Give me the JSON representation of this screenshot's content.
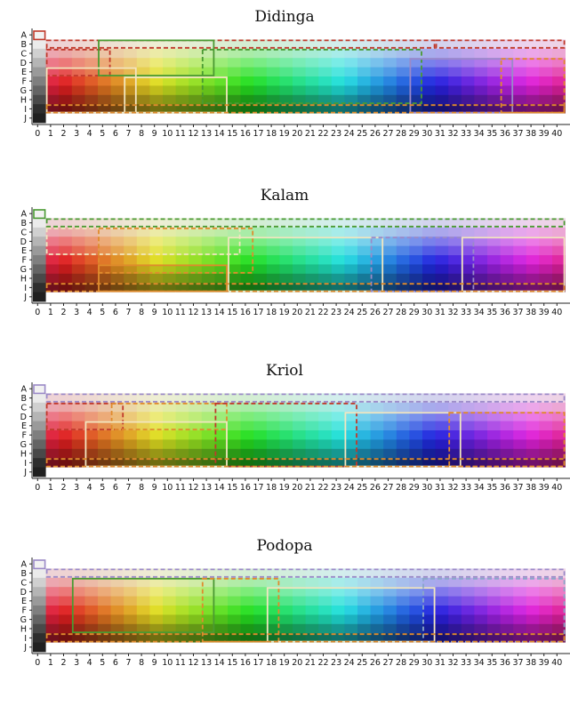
{
  "chart_data": [
    {
      "type": "heatmap",
      "title": "Didinga",
      "rows": [
        "A",
        "B",
        "C",
        "D",
        "E",
        "F",
        "G",
        "H",
        "I",
        "J"
      ],
      "columns": [
        "0",
        "1",
        "2",
        "3",
        "4",
        "5",
        "6",
        "7",
        "8",
        "9",
        "10",
        "11",
        "12",
        "13",
        "14",
        "15",
        "16",
        "17",
        "18",
        "19",
        "20",
        "21",
        "22",
        "23",
        "24",
        "25",
        "26",
        "27",
        "28",
        "29",
        "30",
        "31",
        "32",
        "33",
        "34",
        "35",
        "36",
        "37",
        "38",
        "39",
        "40"
      ],
      "description_of_cells": "Munsell-style color chip grid (hue varies by column, lightness by row); dashed and solid outlines mark color-term categories",
      "category_outline_colors": [
        "#c0392b",
        "#4a9a32",
        "#e08b2d",
        "#f2e6c0",
        "#9b8ac8",
        "#8aa8c8"
      ]
    },
    {
      "type": "heatmap",
      "title": "Kalam",
      "rows": [
        "A",
        "B",
        "C",
        "D",
        "E",
        "F",
        "G",
        "H",
        "I",
        "J"
      ],
      "columns": [
        "0",
        "1",
        "2",
        "3",
        "4",
        "5",
        "6",
        "7",
        "8",
        "9",
        "10",
        "11",
        "12",
        "13",
        "14",
        "15",
        "16",
        "17",
        "18",
        "19",
        "20",
        "21",
        "22",
        "23",
        "24",
        "25",
        "26",
        "27",
        "28",
        "29",
        "30",
        "31",
        "32",
        "33",
        "34",
        "35",
        "36",
        "37",
        "38",
        "39",
        "40"
      ],
      "description_of_cells": "Munsell-style color chip grid; outlines mark color-term categories",
      "category_outline_colors": [
        "#4a9a32",
        "#e08b2d",
        "#f2e6c0",
        "#9b8ac8"
      ]
    },
    {
      "type": "heatmap",
      "title": "Kriol",
      "rows": [
        "A",
        "B",
        "C",
        "D",
        "E",
        "F",
        "G",
        "H",
        "I",
        "J"
      ],
      "columns": [
        "0",
        "1",
        "2",
        "3",
        "4",
        "5",
        "6",
        "7",
        "8",
        "9",
        "10",
        "11",
        "12",
        "13",
        "14",
        "15",
        "16",
        "17",
        "18",
        "19",
        "20",
        "21",
        "22",
        "23",
        "24",
        "25",
        "26",
        "27",
        "28",
        "29",
        "30",
        "31",
        "32",
        "33",
        "34",
        "35",
        "36",
        "37",
        "38",
        "39",
        "40"
      ],
      "description_of_cells": "Munsell-style color chip grid; outlines mark color-term categories",
      "category_outline_colors": [
        "#9b8ac8",
        "#c0392b",
        "#e08b2d",
        "#f2e6c0",
        "#4a9a32"
      ]
    },
    {
      "type": "heatmap",
      "title": "Podopa",
      "rows": [
        "A",
        "B",
        "C",
        "D",
        "E",
        "F",
        "G",
        "H",
        "I",
        "J"
      ],
      "columns": [
        "0",
        "1",
        "2",
        "3",
        "4",
        "5",
        "6",
        "7",
        "8",
        "9",
        "10",
        "11",
        "12",
        "13",
        "14",
        "15",
        "16",
        "17",
        "18",
        "19",
        "20",
        "21",
        "22",
        "23",
        "24",
        "25",
        "26",
        "27",
        "28",
        "29",
        "30",
        "31",
        "32",
        "33",
        "34",
        "35",
        "36",
        "37",
        "38",
        "39",
        "40"
      ],
      "description_of_cells": "Munsell-style color chip grid; outlines mark color-term categories",
      "category_outline_colors": [
        "#9b8ac8",
        "#4a9a32",
        "#e08b2d",
        "#f2e6c0",
        "#8aa8c8"
      ]
    }
  ]
}
